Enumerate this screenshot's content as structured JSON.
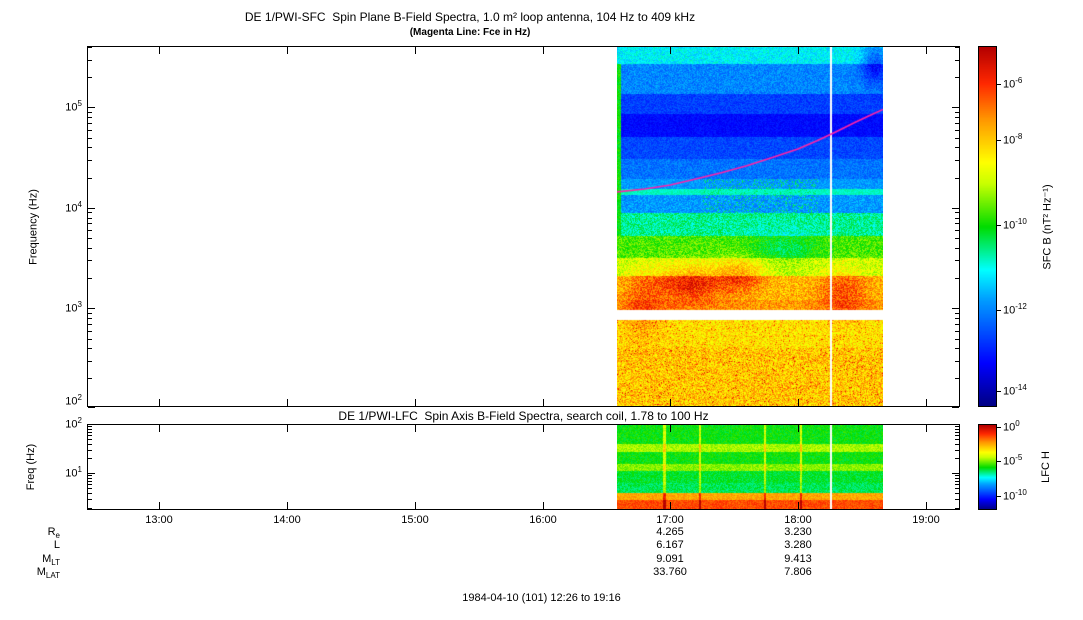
{
  "header": {
    "title": "DE 1/PWI-SFC  Spin Plane B-Field Spectra, 1.0 m² loop antenna, 104 Hz to 409 kHz",
    "subtitle": "(Magenta Line: Fce in Hz)"
  },
  "footer": {
    "time_range": "1984-04-10 (101) 12:26 to 19:16"
  },
  "chart_data": [
    {
      "type": "heatmap",
      "name": "sfc-spectrogram",
      "title": "DE 1/PWI-SFC  Spin Plane B-Field Spectra, 1.0 m² loop antenna, 104 Hz to 409 kHz",
      "ylabel": "Frequency (Hz)",
      "yscale": "log",
      "ylim_hz": [
        104,
        409000
      ],
      "yticks": [
        {
          "exp": "5",
          "logf": 5
        },
        {
          "exp": "4",
          "logf": 4
        },
        {
          "exp": "3",
          "logf": 3
        },
        {
          "exp": "2",
          "logf": 2
        }
      ],
      "x_time_range": [
        "12:26",
        "19:16"
      ],
      "x_hours_range": [
        12.4333,
        19.2667
      ],
      "xticks": [
        {
          "label": "13:00",
          "hour": 13
        },
        {
          "label": "14:00",
          "hour": 14
        },
        {
          "label": "15:00",
          "hour": 15
        },
        {
          "label": "16:00",
          "hour": 16
        },
        {
          "label": "17:00",
          "hour": 17
        },
        {
          "label": "18:00",
          "hour": 18
        },
        {
          "label": "19:00",
          "hour": 19
        }
      ],
      "data_interval_time": [
        "16:35",
        "18:40"
      ],
      "data_interval_hours": [
        16.583,
        18.667
      ],
      "colorbar": {
        "label": "SFC B (nT² Hz⁻¹)",
        "colormap": "rainbow",
        "value_range_log": [
          -5,
          -15
        ],
        "ticks": [
          {
            "exp": "-6",
            "frac": 0.105
          },
          {
            "exp": "-8",
            "frac": 0.26
          },
          {
            "exp": "-10",
            "frac": 0.495
          },
          {
            "exp": "-12",
            "frac": 0.73
          },
          {
            "exp": "-14",
            "frac": 0.955
          }
        ]
      },
      "features": {
        "fce_line_color": "#ff22aa",
        "fce_line_points": [
          [
            16.583,
            14500
          ],
          [
            16.8,
            15500
          ],
          [
            17.0,
            17000
          ],
          [
            17.2,
            19500
          ],
          [
            17.4,
            22500
          ],
          [
            17.6,
            26500
          ],
          [
            17.8,
            32000
          ],
          [
            18.0,
            39000
          ],
          [
            18.15,
            47000
          ],
          [
            18.3,
            58000
          ],
          [
            18.45,
            72000
          ],
          [
            18.55,
            83000
          ],
          [
            18.667,
            97000
          ]
        ],
        "cyan_line_hz": 14500,
        "data_gap_hz": [
          760,
          955
        ],
        "white_line_hour": 18.25,
        "bands_logf_P_noise": [
          [
            5.45,
            5.62,
            -11.3,
            0.5
          ],
          [
            5.15,
            5.45,
            -12.3,
            0.5
          ],
          [
            4.95,
            5.15,
            -13.1,
            0.4
          ],
          [
            4.72,
            4.95,
            -13.7,
            0.3
          ],
          [
            4.5,
            4.72,
            -13.0,
            0.4
          ],
          [
            4.3,
            4.5,
            -12.5,
            0.45
          ],
          [
            4.19,
            4.3,
            -12.1,
            0.4
          ],
          [
            4.135,
            4.19,
            -10.9,
            0.2
          ],
          [
            3.95,
            4.135,
            -12.1,
            0.5
          ],
          [
            3.72,
            3.95,
            -10.7,
            0.6
          ],
          [
            3.5,
            3.72,
            -9.6,
            0.6
          ],
          [
            3.32,
            3.5,
            -8.7,
            0.7
          ],
          [
            3.08,
            3.32,
            -7.4,
            0.8
          ],
          [
            2.98,
            3.08,
            -7.1,
            0.7
          ],
          [
            2.6,
            2.88,
            -7.9,
            0.7
          ],
          [
            2.017,
            2.6,
            -7.6,
            0.9
          ]
        ],
        "blobs": [
          {
            "t": 17.15,
            "lf": 3.25,
            "st": 0.28,
            "sf": 0.2,
            "amp": 1.6
          },
          {
            "t": 17.55,
            "lf": 3.35,
            "st": 0.18,
            "sf": 0.16,
            "amp": 1.3
          },
          {
            "t": 16.78,
            "lf": 3.0,
            "st": 0.15,
            "sf": 0.35,
            "amp": 0.9
          },
          {
            "t": 18.35,
            "lf": 3.15,
            "st": 0.18,
            "sf": 0.25,
            "amp": 1.1
          },
          {
            "t": 17.9,
            "lf": 3.6,
            "st": 0.25,
            "sf": 0.15,
            "amp": -0.8
          },
          {
            "t": 18.6,
            "lf": 5.45,
            "st": 0.1,
            "sf": 0.2,
            "amp": -1.5
          }
        ]
      }
    },
    {
      "type": "heatmap",
      "name": "lfc-spectrogram",
      "title": "DE 1/PWI-LFC  Spin Axis B-Field Spectra, search coil, 1.78 to 100 Hz",
      "ylabel": "Freq (Hz)",
      "yscale": "log",
      "ylim_hz": [
        1.78,
        100
      ],
      "yticks": [
        {
          "exp": "2",
          "logf": 2
        },
        {
          "exp": "1",
          "logf": 1
        }
      ],
      "data_interval_hours": [
        16.583,
        18.667
      ],
      "colorbar": {
        "label": "LFC H",
        "colormap": "rainbow",
        "ticks": [
          {
            "exp": "0",
            "frac": 0.03
          },
          {
            "exp": "-5",
            "frac": 0.43
          },
          {
            "exp": "-10",
            "frac": 0.835
          }
        ]
      },
      "features": {
        "bands_logf_v_noise": [
          [
            1.62,
            2.01,
            0.5,
            0.04
          ],
          [
            1.45,
            1.62,
            0.6,
            0.04
          ],
          [
            1.2,
            1.45,
            0.5,
            0.04
          ],
          [
            1.05,
            1.2,
            0.58,
            0.04
          ],
          [
            0.8,
            1.05,
            0.48,
            0.04
          ],
          [
            0.6,
            0.8,
            0.46,
            0.04
          ],
          [
            0.45,
            0.6,
            0.78,
            0.04
          ],
          [
            0.24,
            0.45,
            0.87,
            0.04
          ]
        ],
        "streak_hours": [
          16.95,
          17.23,
          17.74,
          18.02
        ],
        "white_line_hour": 18.25
      }
    }
  ],
  "ephemeris": {
    "value_column_hours": [
      17,
      18
    ],
    "rows": [
      {
        "base": "R",
        "sub": "e",
        "values": [
          "4.265",
          "3.230"
        ]
      },
      {
        "base": "L",
        "sub": "",
        "values": [
          "6.167",
          "3.280"
        ]
      },
      {
        "base": "M",
        "sub": "LT",
        "values": [
          "9.091",
          "9.413"
        ]
      },
      {
        "base": "M",
        "sub": "LAT",
        "values": [
          "33.760",
          "7.806"
        ]
      }
    ]
  }
}
